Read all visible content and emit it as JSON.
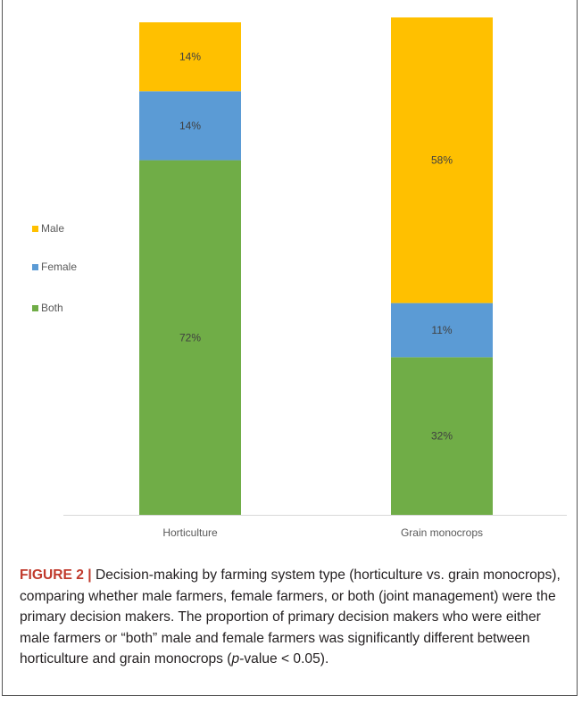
{
  "chart_data": {
    "type": "bar",
    "stacked": true,
    "categories": [
      "Horticulture",
      "Grain monocrops"
    ],
    "series": [
      {
        "name": "Both",
        "values": [
          72,
          32
        ],
        "labels": [
          "72%",
          "32%"
        ]
      },
      {
        "name": "Female",
        "values": [
          14,
          11
        ],
        "labels": [
          "14%",
          "11%"
        ]
      },
      {
        "name": "Male",
        "values": [
          14,
          58
        ],
        "labels": [
          "14%",
          "58%"
        ]
      }
    ],
    "legend_order": [
      "Male",
      "Female",
      "Both"
    ],
    "legend_position": "left",
    "ylim": [
      0,
      100
    ],
    "grid": false,
    "colors": {
      "Both": "#70ad47",
      "Female": "#5b9bd5",
      "Male": "#ffc000"
    }
  },
  "caption": {
    "lead": "FIGURE 2 |",
    "text": " Decision-making by farming system type (horticulture vs. grain monocrops), comparing whether male farmers, female farmers, or both (joint management) were the primary decision makers. The proportion of primary decision makers who were either male farmers or “both” male and female farmers was significantly different between horticulture and grain monocrops (",
    "pvalue_italic": "p",
    "pvalue_rest": "-value < 0.05)."
  }
}
